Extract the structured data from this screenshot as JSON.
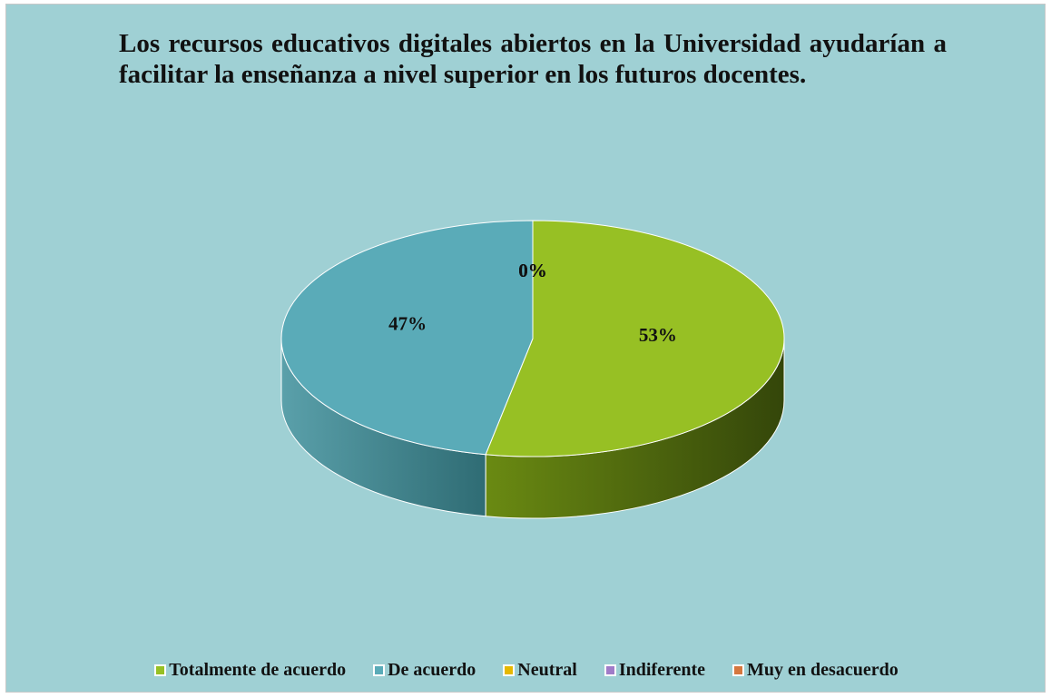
{
  "chart_data": {
    "type": "pie3d",
    "title": "Los recursos educativos digitales abiertos en la Universidad ayudarían a facilitar la enseñanza a nivel superior en los futuros docentes.",
    "categories": [
      "Totalmente de acuerdo",
      "De acuerdo",
      "Neutral",
      "Indiferente",
      "Muy en desacuerdo"
    ],
    "values": [
      53,
      47,
      0,
      0,
      0
    ],
    "value_labels": [
      "53%",
      "47%",
      "0%",
      "0%",
      "0%"
    ],
    "colors": [
      "#97c024",
      "#5aabb8",
      "#e6b800",
      "#a07cc8",
      "#d5773f"
    ],
    "legend": "bottom"
  }
}
